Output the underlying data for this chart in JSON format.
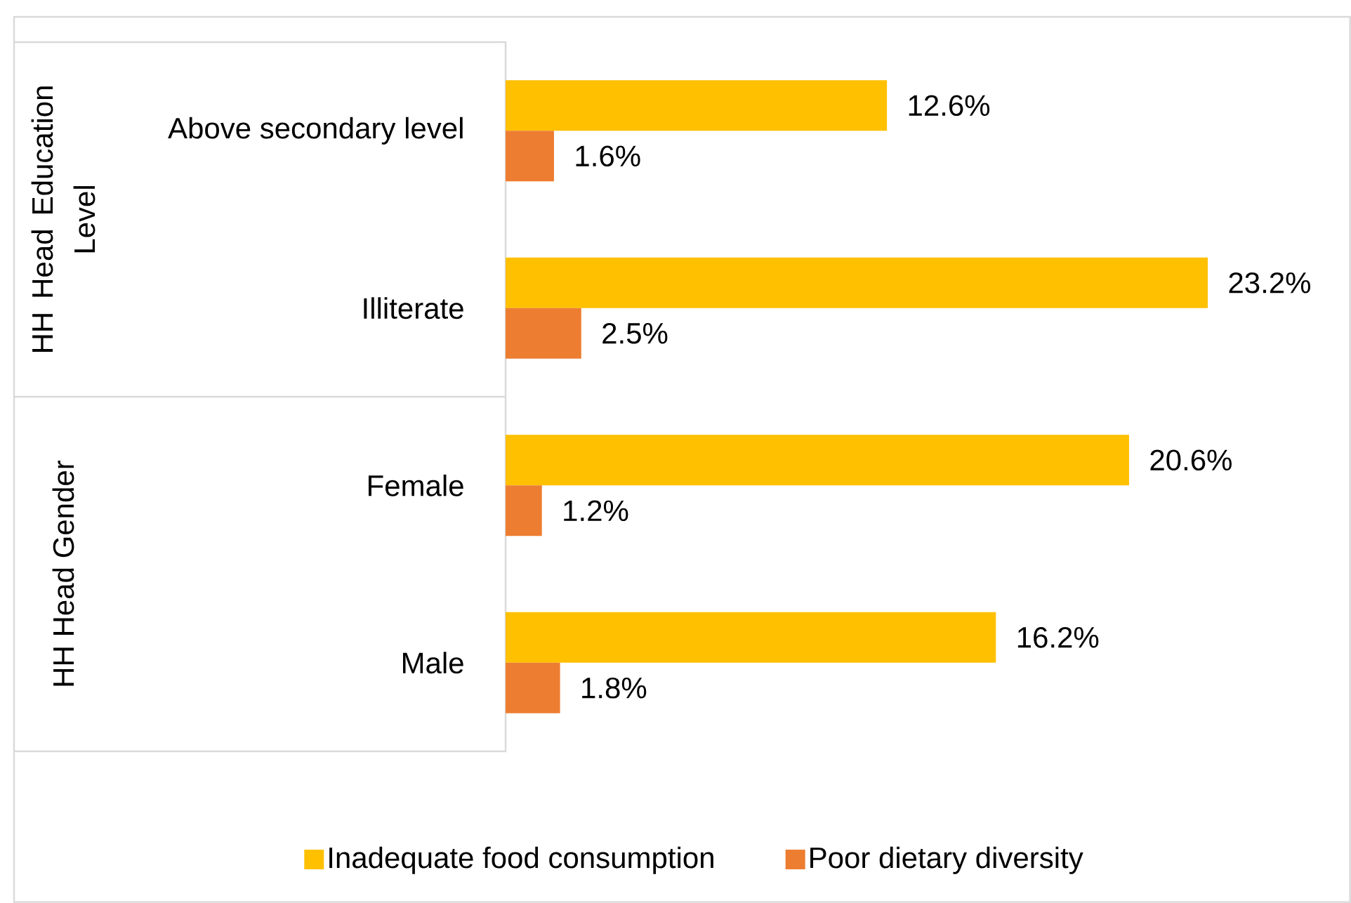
{
  "chart_data": {
    "type": "bar",
    "orientation": "horizontal",
    "categories": [
      "Above secondary level",
      "Illiterate",
      "Female",
      "Male"
    ],
    "series": [
      {
        "name": "Inadequate food consumption",
        "color": "#ffc000",
        "values": [
          12.6,
          23.2,
          20.6,
          16.2
        ],
        "value_labels": [
          "12.6%",
          "23.2%",
          "20.6%",
          "16.2%"
        ]
      },
      {
        "name": "Poor dietary diversity",
        "color": "#ed7d31",
        "values": [
          1.6,
          2.5,
          1.2,
          1.8
        ],
        "value_labels": [
          "1.6%",
          "2.5%",
          "1.2%",
          "1.8%"
        ]
      }
    ],
    "annotations": [
      "HH Head Education Level",
      "HH Head Gender"
    ],
    "legend": "bottom"
  }
}
